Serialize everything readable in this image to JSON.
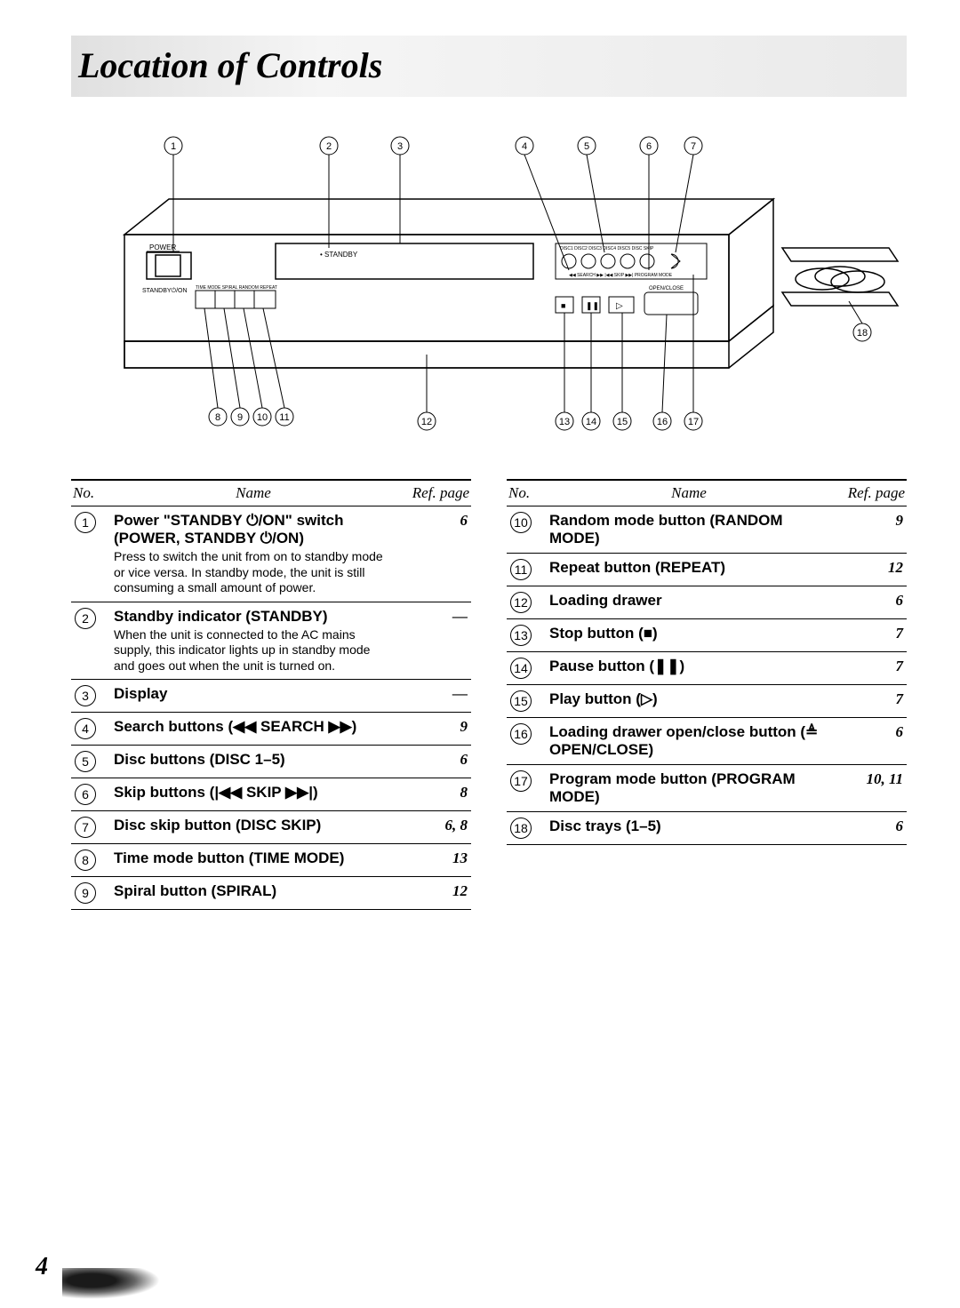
{
  "title": "Location of Controls",
  "page_number": "4",
  "header": {
    "no": "No.",
    "name": "Name",
    "ref": "Ref. page"
  },
  "left_controls": [
    {
      "num": "1",
      "name": "Power \"STANDBY ⏻/ON\" switch (POWER, STANDBY ⏻/ON)",
      "desc": "Press to switch the unit from on to standby mode or vice versa. In standby mode, the unit is still consuming a small amount of power.",
      "ref": "6"
    },
    {
      "num": "2",
      "name": "Standby indicator (STANDBY)",
      "desc": "When the unit is connected to the AC mains supply, this indicator lights up in standby mode and goes out when the unit is turned on.",
      "ref": "—"
    },
    {
      "num": "3",
      "name": "Display",
      "desc": "",
      "ref": "—"
    },
    {
      "num": "4",
      "name": "Search buttons (◀◀ SEARCH ▶▶)",
      "desc": "",
      "ref": "9"
    },
    {
      "num": "5",
      "name": "Disc buttons (DISC 1–5)",
      "desc": "",
      "ref": "6"
    },
    {
      "num": "6",
      "name": "Skip buttons (|◀◀ SKIP ▶▶|)",
      "desc": "",
      "ref": "8"
    },
    {
      "num": "7",
      "name": "Disc skip button (DISC SKIP)",
      "desc": "",
      "ref": "6, 8"
    },
    {
      "num": "8",
      "name": "Time mode button (TIME MODE)",
      "desc": "",
      "ref": "13"
    },
    {
      "num": "9",
      "name": "Spiral button (SPIRAL)",
      "desc": "",
      "ref": "12"
    }
  ],
  "right_controls": [
    {
      "num": "10",
      "name": "Random mode button (RANDOM MODE)",
      "desc": "",
      "ref": "9"
    },
    {
      "num": "11",
      "name": "Repeat button (REPEAT)",
      "desc": "",
      "ref": "12"
    },
    {
      "num": "12",
      "name": "Loading drawer",
      "desc": "",
      "ref": "6"
    },
    {
      "num": "13",
      "name": "Stop button (■)",
      "desc": "",
      "ref": "7"
    },
    {
      "num": "14",
      "name": "Pause button (❚❚)",
      "desc": "",
      "ref": "7"
    },
    {
      "num": "15",
      "name": "Play button (▷)",
      "desc": "",
      "ref": "7"
    },
    {
      "num": "16",
      "name": "Loading drawer open/close button (≜ OPEN/CLOSE)",
      "desc": "",
      "ref": "6"
    },
    {
      "num": "17",
      "name": "Program mode button (PROGRAM MODE)",
      "desc": "",
      "ref": "10, 11"
    },
    {
      "num": "18",
      "name": "Disc trays (1–5)",
      "desc": "",
      "ref": "6"
    }
  ],
  "diagram": {
    "callouts_top": [
      "1",
      "2",
      "3",
      "4",
      "5",
      "6",
      "7"
    ],
    "callouts_bottom_left": [
      "8",
      "9",
      "10",
      "11"
    ],
    "callouts_bottom_mid": [
      "12"
    ],
    "callouts_bottom_right": [
      "13",
      "14",
      "15",
      "16",
      "17"
    ],
    "side_callout": "18",
    "dev_labels": {
      "power": "POWER",
      "standby": "STANDBY ⏻/ON",
      "standby_ind": "• STANDBY",
      "mode_row": [
        "TIME MODE",
        "SPIRAL",
        "RANDOM MODE",
        "REPEAT"
      ],
      "discs": [
        "DISC 1",
        "DISC 2",
        "DISC 3",
        "DISC 4",
        "DISC 5",
        "DISC SKIP"
      ],
      "search": "◀◀ SEARCH ▶▶",
      "skip": "|◀◀ SKIP ▶▶|",
      "program": "PROGRAM MODE",
      "openclose": "OPEN/CLOSE",
      "stop": "■",
      "pause": "❚❚",
      "play": "▷"
    }
  }
}
